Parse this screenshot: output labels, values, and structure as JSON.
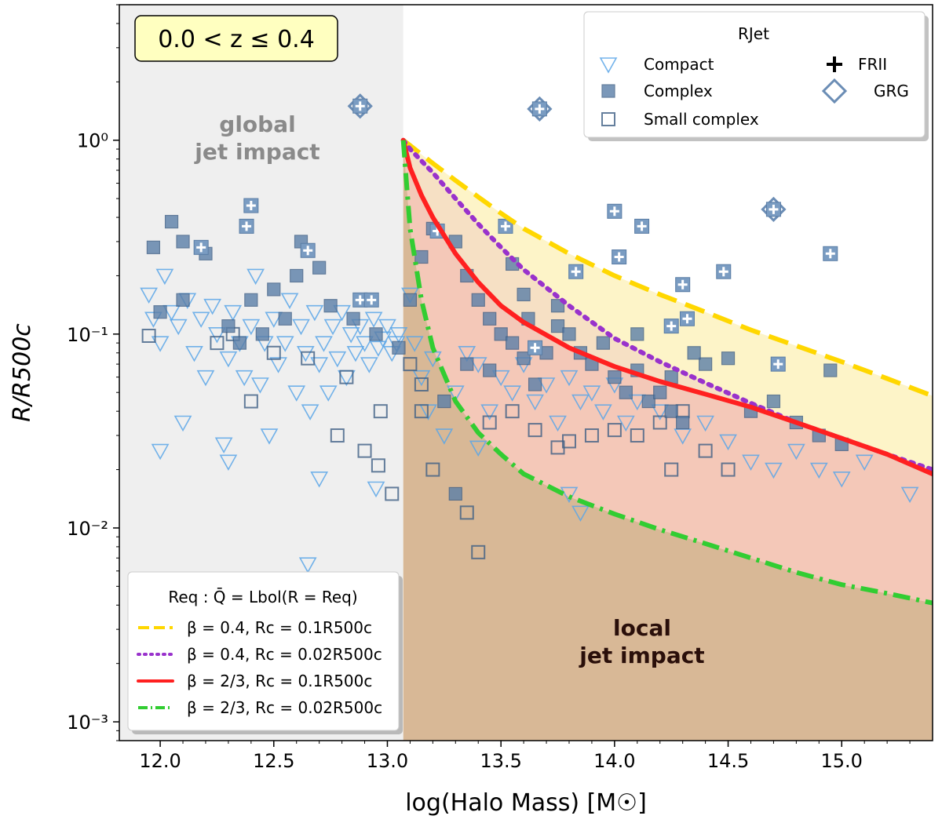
{
  "chart_data": {
    "type": "scatter",
    "xlabel": "log(Halo Mass) [M☉]",
    "ylabel": "R/R500c",
    "xlim": [
      11.82,
      15.4
    ],
    "ylim": [
      0.0008,
      5.0
    ],
    "yscale": "log",
    "x_ticks": [
      12.0,
      12.5,
      13.0,
      13.5,
      14.0,
      14.5,
      15.0
    ],
    "x_tick_labels": [
      "12.0",
      "12.5",
      "13.0",
      "13.5",
      "14.0",
      "14.5",
      "15.0"
    ],
    "y_ticks": [
      0.001,
      0.01,
      0.1,
      1.0
    ],
    "y_tick_labels": [
      "10⁻³",
      "10⁻²",
      "10⁻¹",
      "10⁰"
    ],
    "redshift_label": "0.0 < z ≤ 0.4",
    "global_boundary_x": 13.07,
    "annotations": {
      "global": [
        "global",
        "jet impact"
      ],
      "local": [
        "local",
        "jet impact"
      ]
    },
    "marker_legend": {
      "title": "RJet",
      "entries": [
        {
          "label": "Compact",
          "marker": "triangle-down-open"
        },
        {
          "label": "Complex",
          "marker": "square-filled"
        },
        {
          "label": "Small complex",
          "marker": "square-open"
        },
        {
          "label": "FRII",
          "marker": "plus"
        },
        {
          "label": "GRG",
          "marker": "diamond-open"
        }
      ]
    },
    "curve_legend": {
      "title": "Req : Q̄ = Lbol(R = Req)",
      "entries": [
        {
          "label": "β = 0.4, Rc = 0.1R500c",
          "color": "#ffd700",
          "style": "dashed"
        },
        {
          "label": "β = 0.4, Rc = 0.02R500c",
          "color": "#9932cc",
          "style": "dotted"
        },
        {
          "label": "β = 2/3, Rc = 0.1R500c",
          "color": "#ff2020",
          "style": "solid"
        },
        {
          "label": "β = 2/3, Rc = 0.02R500c",
          "color": "#32cd32",
          "style": "dashdot"
        }
      ]
    },
    "curves": [
      {
        "name": "beta0.4_rc0.1",
        "color": "#ffd700",
        "style": "dashed",
        "x": [
          13.07,
          13.1,
          13.2,
          13.3,
          13.4,
          13.5,
          13.6,
          13.8,
          14.0,
          14.2,
          14.4,
          14.6,
          14.8,
          15.0,
          15.2,
          15.4
        ],
        "y": [
          1.0,
          0.94,
          0.76,
          0.62,
          0.51,
          0.42,
          0.35,
          0.26,
          0.2,
          0.16,
          0.13,
          0.105,
          0.087,
          0.072,
          0.059,
          0.048
        ]
      },
      {
        "name": "beta0.4_rc0.02",
        "color": "#9932cc",
        "style": "dotted",
        "x": [
          13.07,
          13.1,
          13.2,
          13.3,
          13.4,
          13.5,
          13.6,
          13.8,
          14.0,
          14.2,
          14.4,
          14.6,
          14.8,
          15.0,
          15.2,
          15.4
        ],
        "y": [
          1.0,
          0.9,
          0.68,
          0.5,
          0.37,
          0.28,
          0.215,
          0.14,
          0.095,
          0.072,
          0.056,
          0.044,
          0.035,
          0.029,
          0.024,
          0.02
        ]
      },
      {
        "name": "beta0.67_rc0.1",
        "color": "#ff2020",
        "style": "solid",
        "x": [
          13.07,
          13.1,
          13.15,
          13.2,
          13.3,
          13.4,
          13.5,
          13.6,
          13.8,
          14.0,
          14.2,
          14.4,
          14.6,
          14.8,
          15.0,
          15.2,
          15.4
        ],
        "y": [
          1.0,
          0.72,
          0.52,
          0.4,
          0.26,
          0.185,
          0.14,
          0.115,
          0.085,
          0.068,
          0.057,
          0.049,
          0.042,
          0.035,
          0.029,
          0.024,
          0.019
        ]
      },
      {
        "name": "beta0.67_rc0.02",
        "color": "#32cd32",
        "style": "dashdot",
        "x": [
          13.07,
          13.08,
          13.1,
          13.15,
          13.2,
          13.3,
          13.4,
          13.5,
          13.6,
          13.8,
          14.0,
          14.2,
          14.4,
          14.6,
          14.8,
          15.0,
          15.2,
          15.4
        ],
        "y": [
          1.0,
          0.7,
          0.35,
          0.15,
          0.085,
          0.045,
          0.031,
          0.024,
          0.019,
          0.0145,
          0.0118,
          0.0098,
          0.0083,
          0.007,
          0.0059,
          0.0051,
          0.0046,
          0.0041
        ]
      }
    ],
    "series": [
      {
        "name": "Compact",
        "marker": "triangle-down-open",
        "points": [
          [
            11.95,
            0.16
          ],
          [
            11.97,
            0.12
          ],
          [
            12.0,
            0.09
          ],
          [
            12.02,
            0.2
          ],
          [
            12.05,
            0.13
          ],
          [
            12.08,
            0.11
          ],
          [
            12.1,
            0.035
          ],
          [
            12.12,
            0.15
          ],
          [
            12.15,
            0.08
          ],
          [
            12.18,
            0.12
          ],
          [
            12.2,
            0.06
          ],
          [
            12.23,
            0.14
          ],
          [
            12.25,
            0.1
          ],
          [
            12.28,
            0.027
          ],
          [
            12.3,
            0.075
          ],
          [
            12.32,
            0.13
          ],
          [
            12.35,
            0.09
          ],
          [
            12.37,
            0.06
          ],
          [
            12.4,
            0.11
          ],
          [
            12.42,
            0.2
          ],
          [
            12.44,
            0.055
          ],
          [
            12.46,
            0.09
          ],
          [
            12.48,
            0.03
          ],
          [
            12.5,
            0.12
          ],
          [
            12.52,
            0.07
          ],
          [
            12.55,
            0.09
          ],
          [
            12.57,
            0.15
          ],
          [
            12.6,
            0.05
          ],
          [
            12.62,
            0.11
          ],
          [
            12.64,
            0.08
          ],
          [
            12.66,
            0.04
          ],
          [
            12.68,
            0.13
          ],
          [
            12.7,
            0.07
          ],
          [
            12.72,
            0.09
          ],
          [
            12.74,
            0.05
          ],
          [
            12.76,
            0.11
          ],
          [
            12.78,
            0.075
          ],
          [
            12.8,
            0.13
          ],
          [
            12.82,
            0.06
          ],
          [
            12.84,
            0.1
          ],
          [
            12.86,
            0.08
          ],
          [
            12.88,
            0.11
          ],
          [
            12.9,
            0.09
          ],
          [
            12.92,
            0.07
          ],
          [
            12.94,
            0.12
          ],
          [
            12.96,
            0.085
          ],
          [
            12.98,
            0.095
          ],
          [
            13.0,
            0.11
          ],
          [
            13.02,
            0.08
          ],
          [
            13.04,
            0.09
          ],
          [
            13.05,
            0.1
          ],
          [
            12.0,
            0.025
          ],
          [
            12.3,
            0.022
          ],
          [
            12.7,
            0.018
          ],
          [
            12.95,
            0.016
          ],
          [
            12.65,
            0.0065
          ],
          [
            13.1,
            0.16
          ],
          [
            13.12,
            0.09
          ],
          [
            13.15,
            0.06
          ],
          [
            13.18,
            0.04
          ],
          [
            13.2,
            0.075
          ],
          [
            13.25,
            0.03
          ],
          [
            13.3,
            0.05
          ],
          [
            13.35,
            0.08
          ],
          [
            13.4,
            0.07
          ],
          [
            13.45,
            0.04
          ],
          [
            13.5,
            0.06
          ],
          [
            13.55,
            0.05
          ],
          [
            13.6,
            0.07
          ],
          [
            13.65,
            0.045
          ],
          [
            13.7,
            0.055
          ],
          [
            13.75,
            0.035
          ],
          [
            13.8,
            0.06
          ],
          [
            13.85,
            0.045
          ],
          [
            13.9,
            0.05
          ],
          [
            13.95,
            0.04
          ],
          [
            14.0,
            0.055
          ],
          [
            14.05,
            0.035
          ],
          [
            14.1,
            0.045
          ],
          [
            14.2,
            0.04
          ],
          [
            14.3,
            0.03
          ],
          [
            14.4,
            0.035
          ],
          [
            14.5,
            0.028
          ],
          [
            14.6,
            0.022
          ],
          [
            14.7,
            0.02
          ],
          [
            14.8,
            0.025
          ],
          [
            14.9,
            0.02
          ],
          [
            15.0,
            0.018
          ],
          [
            15.1,
            0.022
          ],
          [
            15.3,
            0.015
          ],
          [
            13.85,
            0.012
          ],
          [
            13.8,
            0.015
          ],
          [
            13.4,
            0.026
          ]
        ]
      },
      {
        "name": "Complex",
        "marker": "square-filled",
        "points": [
          [
            11.97,
            0.28
          ],
          [
            12.05,
            0.38
          ],
          [
            12.1,
            0.3
          ],
          [
            12.2,
            0.26
          ],
          [
            12.0,
            0.13
          ],
          [
            12.1,
            0.15
          ],
          [
            12.3,
            0.11
          ],
          [
            12.4,
            0.15
          ],
          [
            12.5,
            0.17
          ],
          [
            12.6,
            0.2
          ],
          [
            12.62,
            0.3
          ],
          [
            12.7,
            0.22
          ],
          [
            12.45,
            0.1
          ],
          [
            12.55,
            0.12
          ],
          [
            12.35,
            0.09
          ],
          [
            12.75,
            0.14
          ],
          [
            12.85,
            0.12
          ],
          [
            12.95,
            0.1
          ],
          [
            13.05,
            0.085
          ],
          [
            13.1,
            0.15
          ],
          [
            13.15,
            0.25
          ],
          [
            13.2,
            0.35
          ],
          [
            13.3,
            0.3
          ],
          [
            13.35,
            0.2
          ],
          [
            13.4,
            0.15
          ],
          [
            13.45,
            0.12
          ],
          [
            13.5,
            0.1
          ],
          [
            13.55,
            0.09
          ],
          [
            13.6,
            0.16
          ],
          [
            13.62,
            0.12
          ],
          [
            13.7,
            0.08
          ],
          [
            13.75,
            0.11
          ],
          [
            13.8,
            0.1
          ],
          [
            13.85,
            0.08
          ],
          [
            13.9,
            0.07
          ],
          [
            13.95,
            0.09
          ],
          [
            14.0,
            0.06
          ],
          [
            14.05,
            0.05
          ],
          [
            14.1,
            0.065
          ],
          [
            14.15,
            0.045
          ],
          [
            14.2,
            0.05
          ],
          [
            14.25,
            0.04
          ],
          [
            14.3,
            0.035
          ],
          [
            14.4,
            0.07
          ],
          [
            14.5,
            0.075
          ],
          [
            14.6,
            0.04
          ],
          [
            14.7,
            0.045
          ],
          [
            14.8,
            0.035
          ],
          [
            14.9,
            0.03
          ],
          [
            15.0,
            0.027
          ],
          [
            13.55,
            0.23
          ],
          [
            13.75,
            0.14
          ],
          [
            13.6,
            0.075
          ],
          [
            13.45,
            0.065
          ],
          [
            13.65,
            0.055
          ],
          [
            14.25,
            0.06
          ],
          [
            14.35,
            0.08
          ],
          [
            14.95,
            0.065
          ],
          [
            14.1,
            0.1
          ],
          [
            13.3,
            0.015
          ],
          [
            13.35,
            0.07
          ],
          [
            13.25,
            0.045
          ]
        ]
      },
      {
        "name": "Small complex",
        "marker": "square-open",
        "points": [
          [
            11.95,
            0.098
          ],
          [
            12.25,
            0.09
          ],
          [
            12.32,
            0.1
          ],
          [
            12.4,
            0.045
          ],
          [
            12.5,
            0.08
          ],
          [
            12.65,
            0.075
          ],
          [
            12.78,
            0.03
          ],
          [
            12.9,
            0.025
          ],
          [
            12.96,
            0.021
          ],
          [
            13.02,
            0.015
          ],
          [
            12.82,
            0.06
          ],
          [
            12.97,
            0.04
          ],
          [
            13.15,
            0.055
          ],
          [
            13.2,
            0.02
          ],
          [
            13.35,
            0.012
          ],
          [
            13.4,
            0.0075
          ],
          [
            13.45,
            0.035
          ],
          [
            13.55,
            0.04
          ],
          [
            13.65,
            0.032
          ],
          [
            13.75,
            0.026
          ],
          [
            13.8,
            0.028
          ],
          [
            13.9,
            0.03
          ],
          [
            14.0,
            0.032
          ],
          [
            14.1,
            0.03
          ],
          [
            14.2,
            0.035
          ],
          [
            14.25,
            0.02
          ],
          [
            14.3,
            0.04
          ],
          [
            14.4,
            0.025
          ],
          [
            14.5,
            0.02
          ],
          [
            13.15,
            0.04
          ],
          [
            13.1,
            0.07
          ]
        ]
      },
      {
        "name": "FRII",
        "marker": "plus",
        "points": [
          [
            12.4,
            0.46
          ],
          [
            12.38,
            0.36
          ],
          [
            12.18,
            0.28
          ],
          [
            12.65,
            0.27
          ],
          [
            12.88,
            0.15
          ],
          [
            12.93,
            0.15
          ],
          [
            13.22,
            0.34
          ],
          [
            13.52,
            0.36
          ],
          [
            13.83,
            0.21
          ],
          [
            14.0,
            0.43
          ],
          [
            14.12,
            0.36
          ],
          [
            14.3,
            0.18
          ],
          [
            14.48,
            0.21
          ],
          [
            14.95,
            0.26
          ],
          [
            14.25,
            0.11
          ],
          [
            14.32,
            0.12
          ],
          [
            14.02,
            0.25
          ],
          [
            14.72,
            0.07
          ],
          [
            13.65,
            0.085
          ],
          [
            12.88,
            1.5
          ],
          [
            13.67,
            1.45
          ],
          [
            14.7,
            0.44
          ]
        ]
      },
      {
        "name": "GRG",
        "marker": "diamond-open",
        "points": [
          [
            12.88,
            1.5
          ],
          [
            13.67,
            1.45
          ],
          [
            14.7,
            0.44
          ]
        ]
      }
    ]
  }
}
